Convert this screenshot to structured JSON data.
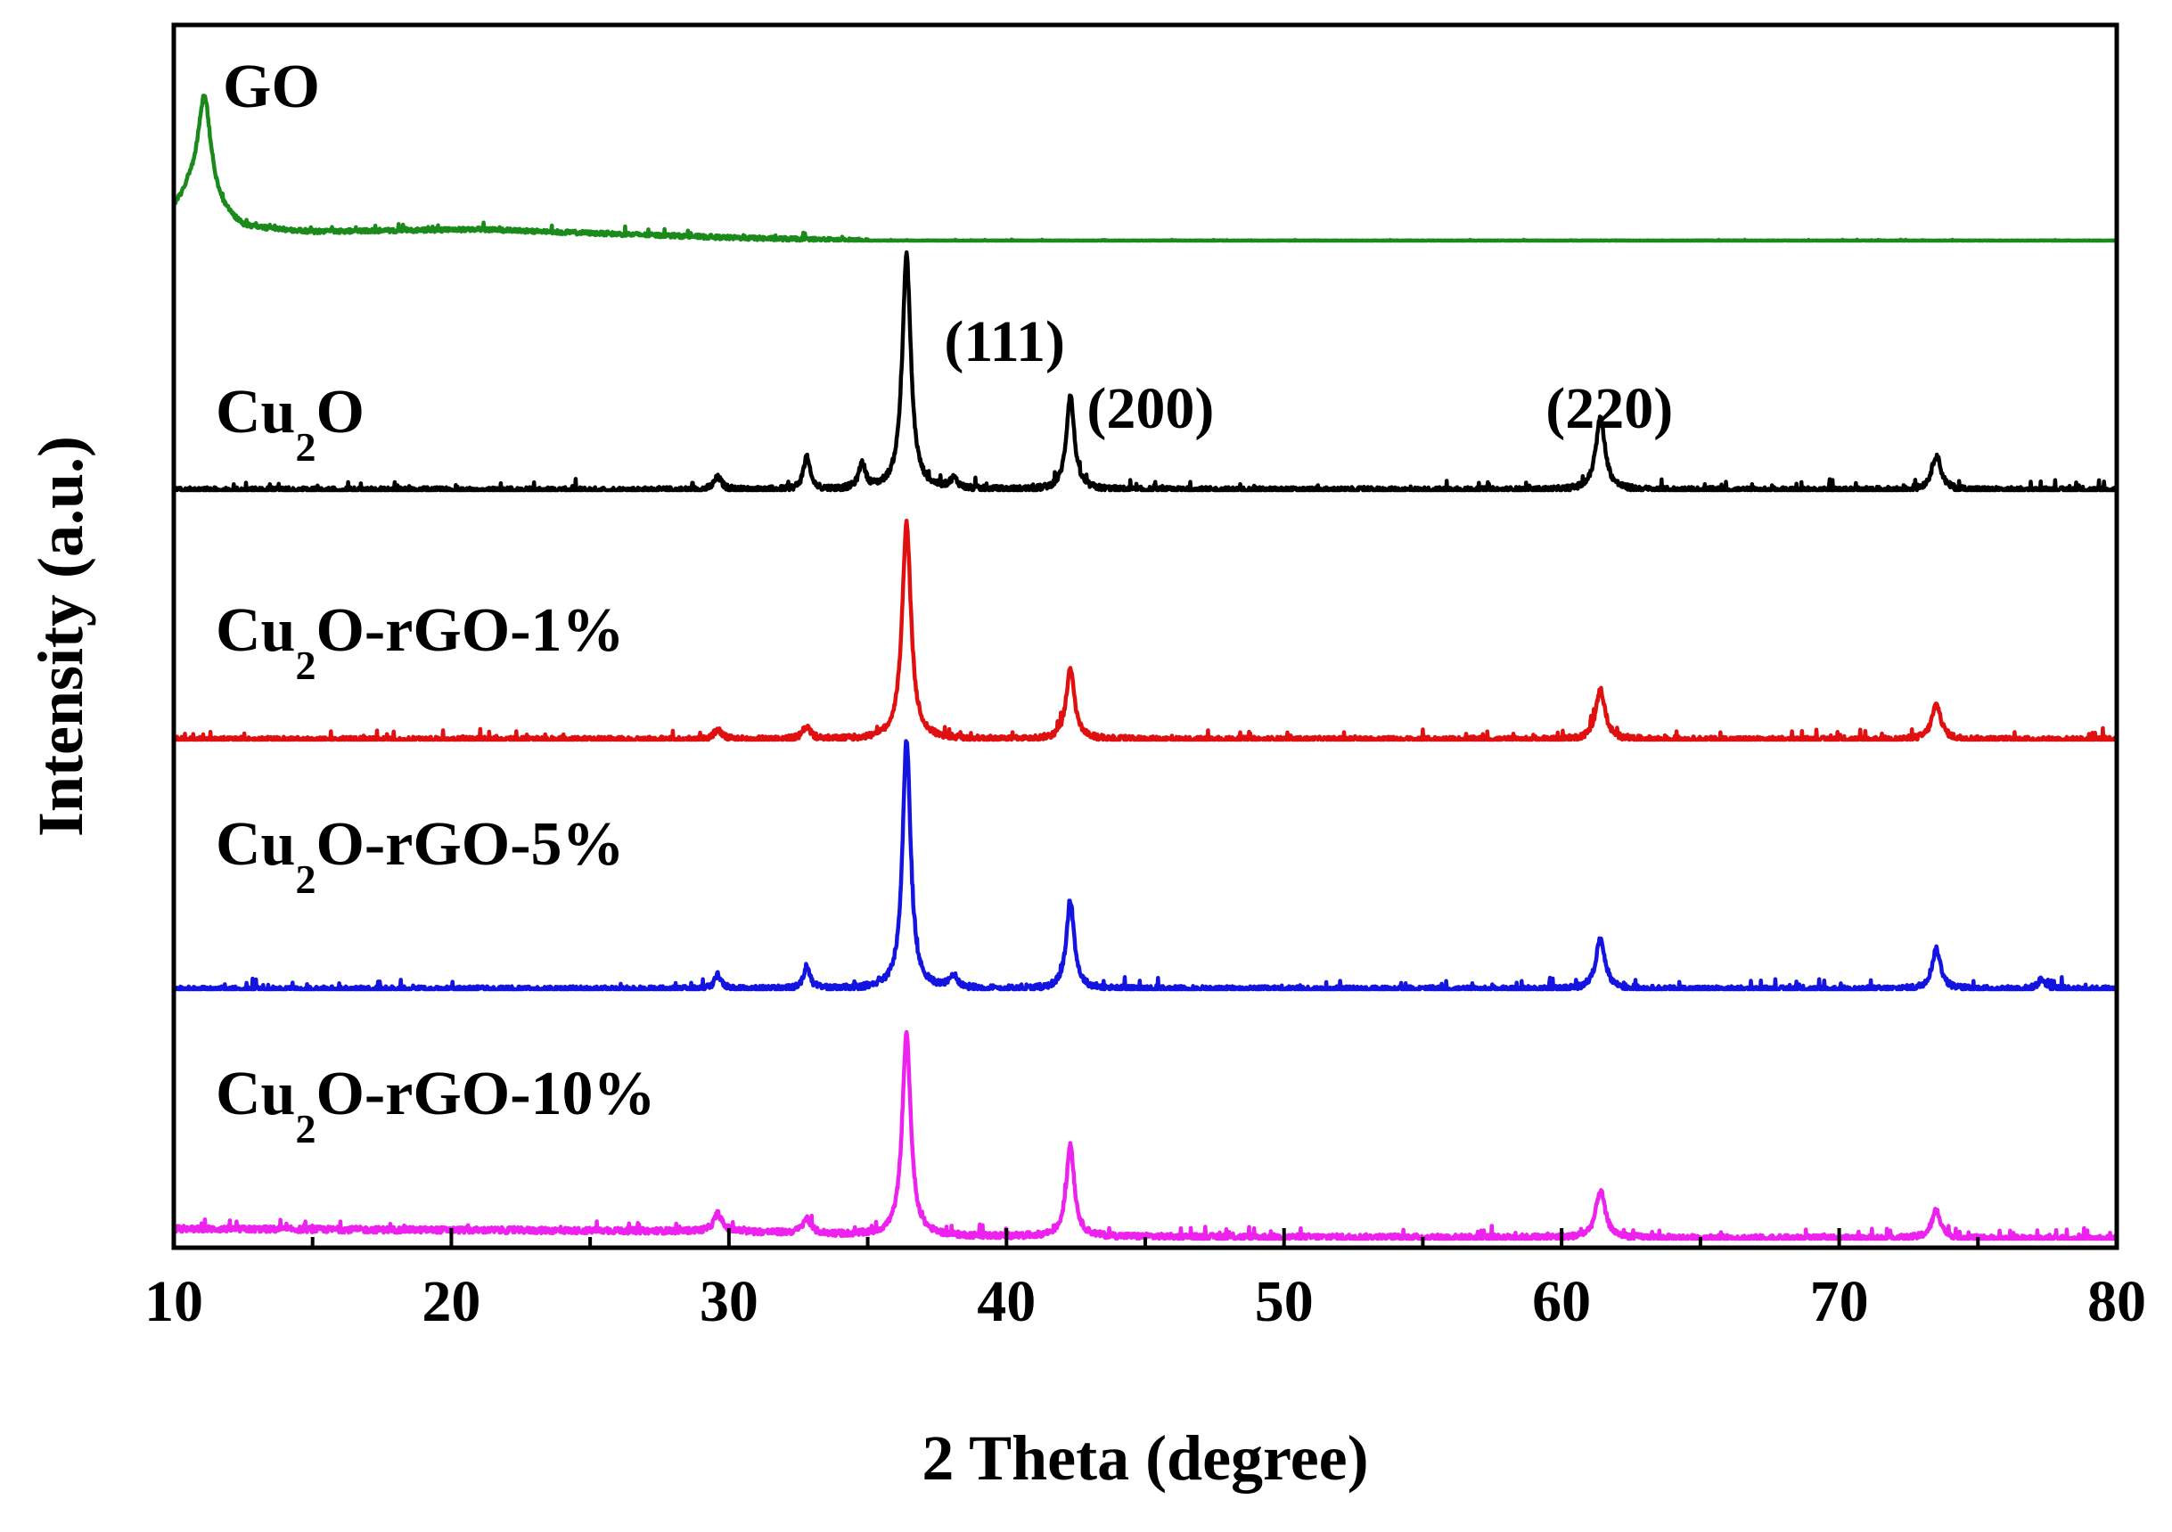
{
  "chart_data": {
    "type": "line",
    "title": "",
    "xlabel": "2 Theta (degree)",
    "ylabel": "Intensity (a.u.)",
    "xlim": [
      10,
      80
    ],
    "x_ticks": [
      10,
      20,
      30,
      40,
      50,
      60,
      70,
      80
    ],
    "x_tick_labels": [
      "10",
      "20",
      "30",
      "40",
      "50",
      "60",
      "70",
      "80"
    ],
    "y_ticks_shown": false,
    "stacked_offset": true,
    "peak_annotations": [
      {
        "label": "(111)",
        "x": 36.4
      },
      {
        "label": "(200)",
        "x": 42.3
      },
      {
        "label": "(220)",
        "x": 61.4
      }
    ],
    "series": [
      {
        "name": "GO",
        "label_main": "GO",
        "label_sub": "",
        "label_rest": "",
        "color": "#1a8a1a",
        "offset": 4.0,
        "noise": 0.008,
        "background": [
          [
            10,
            0.12
          ],
          [
            10.6,
            0.18
          ],
          [
            12.5,
            0.05
          ],
          [
            15,
            0.035
          ],
          [
            21,
            0.045
          ],
          [
            25,
            0.03
          ],
          [
            30,
            0.012
          ],
          [
            35,
            0.0
          ],
          [
            80,
            0.0
          ]
        ],
        "peaks": [
          {
            "x": 11.1,
            "h": 0.43,
            "w": 0.5
          }
        ]
      },
      {
        "name": "Cu2O",
        "label_main": "Cu",
        "label_sub": "2",
        "label_rest": "O",
        "color": "#000000",
        "offset": 3.0,
        "noise": 0.012,
        "background": [
          [
            10,
            0.0
          ],
          [
            80,
            0.0
          ]
        ],
        "peaks": [
          {
            "x": 29.6,
            "h": 0.05,
            "w": 0.3
          },
          {
            "x": 32.8,
            "h": 0.13,
            "w": 0.25
          },
          {
            "x": 34.8,
            "h": 0.1,
            "w": 0.25
          },
          {
            "x": 36.4,
            "h": 0.94,
            "w": 0.32
          },
          {
            "x": 38.1,
            "h": 0.04,
            "w": 0.3
          },
          {
            "x": 42.3,
            "h": 0.38,
            "w": 0.3
          },
          {
            "x": 61.4,
            "h": 0.29,
            "w": 0.35
          },
          {
            "x": 73.5,
            "h": 0.14,
            "w": 0.35
          }
        ]
      },
      {
        "name": "Cu2O-rGO-1%",
        "label_main": "Cu",
        "label_sub": "2",
        "label_rest": "O-rGO-1%",
        "color": "#e01010",
        "offset": 2.0,
        "noise": 0.012,
        "background": [
          [
            10,
            0.0
          ],
          [
            80,
            0.0
          ]
        ],
        "peaks": [
          {
            "x": 29.6,
            "h": 0.04,
            "w": 0.3
          },
          {
            "x": 32.8,
            "h": 0.05,
            "w": 0.3
          },
          {
            "x": 36.4,
            "h": 0.87,
            "w": 0.33
          },
          {
            "x": 42.3,
            "h": 0.28,
            "w": 0.32
          },
          {
            "x": 61.4,
            "h": 0.2,
            "w": 0.35
          },
          {
            "x": 73.5,
            "h": 0.14,
            "w": 0.35
          }
        ]
      },
      {
        "name": "Cu2O-rGO-5%",
        "label_main": "Cu",
        "label_sub": "2",
        "label_rest": "O-rGO-5%",
        "color": "#1414e0",
        "offset": 1.0,
        "noise": 0.012,
        "background": [
          [
            10,
            0.0
          ],
          [
            80,
            0.0
          ]
        ],
        "peaks": [
          {
            "x": 29.6,
            "h": 0.06,
            "w": 0.25
          },
          {
            "x": 32.8,
            "h": 0.09,
            "w": 0.25
          },
          {
            "x": 36.4,
            "h": 1.0,
            "w": 0.3
          },
          {
            "x": 38.1,
            "h": 0.05,
            "w": 0.3
          },
          {
            "x": 42.3,
            "h": 0.35,
            "w": 0.3
          },
          {
            "x": 61.4,
            "h": 0.2,
            "w": 0.35
          },
          {
            "x": 73.5,
            "h": 0.16,
            "w": 0.33
          },
          {
            "x": 77.3,
            "h": 0.04,
            "w": 0.3
          }
        ]
      },
      {
        "name": "Cu2O-rGO-10%",
        "label_main": "Cu",
        "label_sub": "2",
        "label_rest": "O-rGO-10%",
        "color": "#ee22ee",
        "offset": 0.0,
        "noise": 0.012,
        "background": [
          [
            10,
            0.04
          ],
          [
            30,
            0.03
          ],
          [
            36,
            0.01
          ],
          [
            80,
            0.0
          ]
        ],
        "peaks": [
          {
            "x": 29.6,
            "h": 0.07,
            "w": 0.3
          },
          {
            "x": 32.8,
            "h": 0.06,
            "w": 0.3
          },
          {
            "x": 36.4,
            "h": 0.81,
            "w": 0.32
          },
          {
            "x": 42.3,
            "h": 0.37,
            "w": 0.3
          },
          {
            "x": 61.4,
            "h": 0.19,
            "w": 0.35
          },
          {
            "x": 73.5,
            "h": 0.11,
            "w": 0.35
          }
        ]
      }
    ]
  }
}
